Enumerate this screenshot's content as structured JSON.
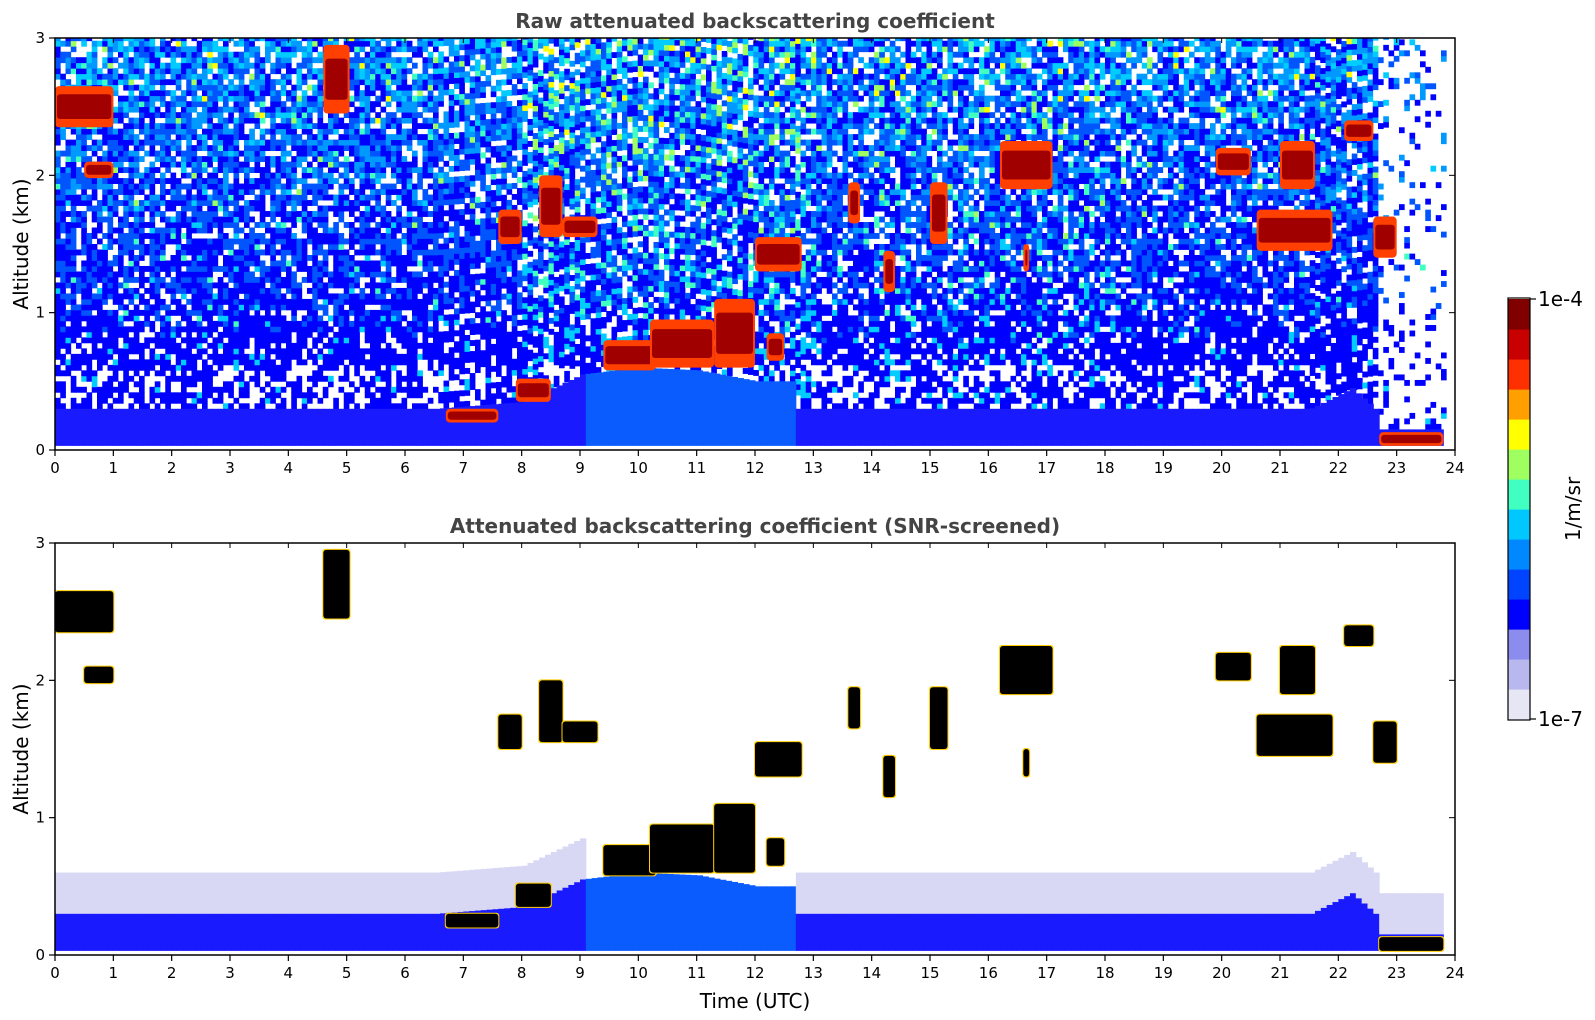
{
  "chart_data": [
    {
      "type": "heatmap",
      "title": "Raw attenuated backscattering coefficient",
      "xlabel": "",
      "ylabel": "Altitude (km)",
      "xlim": [
        0,
        24
      ],
      "ylim": [
        0,
        3
      ],
      "xticks": [
        "0",
        "1",
        "2",
        "3",
        "4",
        "5",
        "6",
        "7",
        "8",
        "9",
        "10",
        "11",
        "12",
        "13",
        "14",
        "15",
        "16",
        "17",
        "18",
        "19",
        "20",
        "21",
        "22",
        "23",
        "24"
      ],
      "yticks": [
        "0",
        "1",
        "2",
        "3"
      ],
      "background": {
        "noise": "speckled blue/cyan/green-yellow noise increasing with altitude, stronger around 8-13 UTC; sparse after 22.7 UTC",
        "boundary_layer_top_km": [
          [
            0,
            0.3
          ],
          [
            6.5,
            0.3
          ],
          [
            8,
            0.35
          ],
          [
            9,
            0.55
          ],
          [
            10,
            0.6
          ],
          [
            11,
            0.58
          ],
          [
            12,
            0.5
          ],
          [
            12.6,
            0.5
          ],
          [
            12.7,
            0.3
          ],
          [
            21.5,
            0.3
          ],
          [
            22.2,
            0.45
          ],
          [
            22.6,
            0.3
          ],
          [
            22.7,
            0.15
          ],
          [
            23.8,
            0.15
          ]
        ]
      },
      "features": [
        {
          "t": [
            0.0,
            1.0
          ],
          "alt": [
            2.35,
            2.65
          ],
          "kind": "cloud"
        },
        {
          "t": [
            0.5,
            1.0
          ],
          "alt": [
            1.98,
            2.1
          ],
          "kind": "cloud"
        },
        {
          "t": [
            4.6,
            5.05
          ],
          "alt": [
            2.45,
            2.95
          ],
          "kind": "cloud"
        },
        {
          "t": [
            7.6,
            8.0
          ],
          "alt": [
            1.5,
            1.75
          ],
          "kind": "cloud"
        },
        {
          "t": [
            8.3,
            8.7
          ],
          "alt": [
            1.55,
            2.0
          ],
          "kind": "cloud"
        },
        {
          "t": [
            8.7,
            9.3
          ],
          "alt": [
            1.55,
            1.7
          ],
          "kind": "cloud"
        },
        {
          "t": [
            12.0,
            12.8
          ],
          "alt": [
            1.3,
            1.55
          ],
          "kind": "cloud"
        },
        {
          "t": [
            9.4,
            10.3
          ],
          "alt": [
            0.58,
            0.8
          ],
          "kind": "cloud"
        },
        {
          "t": [
            10.2,
            11.3
          ],
          "alt": [
            0.6,
            0.95
          ],
          "kind": "cloud"
        },
        {
          "t": [
            11.3,
            12.0
          ],
          "alt": [
            0.6,
            1.1
          ],
          "kind": "cloud"
        },
        {
          "t": [
            12.2,
            12.5
          ],
          "alt": [
            0.65,
            0.85
          ],
          "kind": "cloud"
        },
        {
          "t": [
            7.9,
            8.5
          ],
          "alt": [
            0.35,
            0.52
          ],
          "kind": "cloud"
        },
        {
          "t": [
            6.7,
            7.6
          ],
          "alt": [
            0.2,
            0.3
          ],
          "kind": "cloud"
        },
        {
          "t": [
            13.6,
            13.8
          ],
          "alt": [
            1.65,
            1.95
          ],
          "kind": "cloud"
        },
        {
          "t": [
            14.2,
            14.4
          ],
          "alt": [
            1.15,
            1.45
          ],
          "kind": "cloud"
        },
        {
          "t": [
            15.0,
            15.3
          ],
          "alt": [
            1.5,
            1.95
          ],
          "kind": "cloud"
        },
        {
          "t": [
            16.2,
            17.1
          ],
          "alt": [
            1.9,
            2.25
          ],
          "kind": "cloud"
        },
        {
          "t": [
            16.6,
            16.7
          ],
          "alt": [
            1.3,
            1.5
          ],
          "kind": "cloud"
        },
        {
          "t": [
            19.9,
            20.5
          ],
          "alt": [
            2.0,
            2.2
          ],
          "kind": "cloud"
        },
        {
          "t": [
            20.6,
            21.9
          ],
          "alt": [
            1.45,
            1.75
          ],
          "kind": "cloud"
        },
        {
          "t": [
            21.0,
            21.6
          ],
          "alt": [
            1.9,
            2.25
          ],
          "kind": "cloud"
        },
        {
          "t": [
            22.1,
            22.6
          ],
          "alt": [
            2.25,
            2.4
          ],
          "kind": "cloud"
        },
        {
          "t": [
            22.6,
            23.0
          ],
          "alt": [
            1.4,
            1.7
          ],
          "kind": "cloud"
        },
        {
          "t": [
            22.7,
            23.8
          ],
          "alt": [
            0.03,
            0.13
          ],
          "kind": "fog"
        }
      ]
    },
    {
      "type": "heatmap",
      "title": "Attenuated backscattering coefficient (SNR-screened)",
      "xlabel": "Time (UTC)",
      "ylabel": "Altitude (km)",
      "xlim": [
        0,
        24
      ],
      "ylim": [
        0,
        3
      ],
      "xticks": [
        "0",
        "1",
        "2",
        "3",
        "4",
        "5",
        "6",
        "7",
        "8",
        "9",
        "10",
        "11",
        "12",
        "13",
        "14",
        "15",
        "16",
        "17",
        "18",
        "19",
        "20",
        "21",
        "22",
        "23",
        "24"
      ],
      "yticks": [
        "0",
        "1",
        "2",
        "3"
      ],
      "masked_value_color": "#ffffff",
      "screened_cloud_color": "#000000"
    }
  ],
  "colorbar": {
    "label": "1/m/sr",
    "max_label": "1e-4",
    "min_label": "1e-7",
    "colormap": [
      "#e6e6f5",
      "#b8b8ee",
      "#8c8cee",
      "#0000ff",
      "#0044ff",
      "#0088ff",
      "#00c8ff",
      "#40ffc0",
      "#a0ff60",
      "#ffff00",
      "#ffa000",
      "#ff3000",
      "#c80000",
      "#800000"
    ]
  }
}
